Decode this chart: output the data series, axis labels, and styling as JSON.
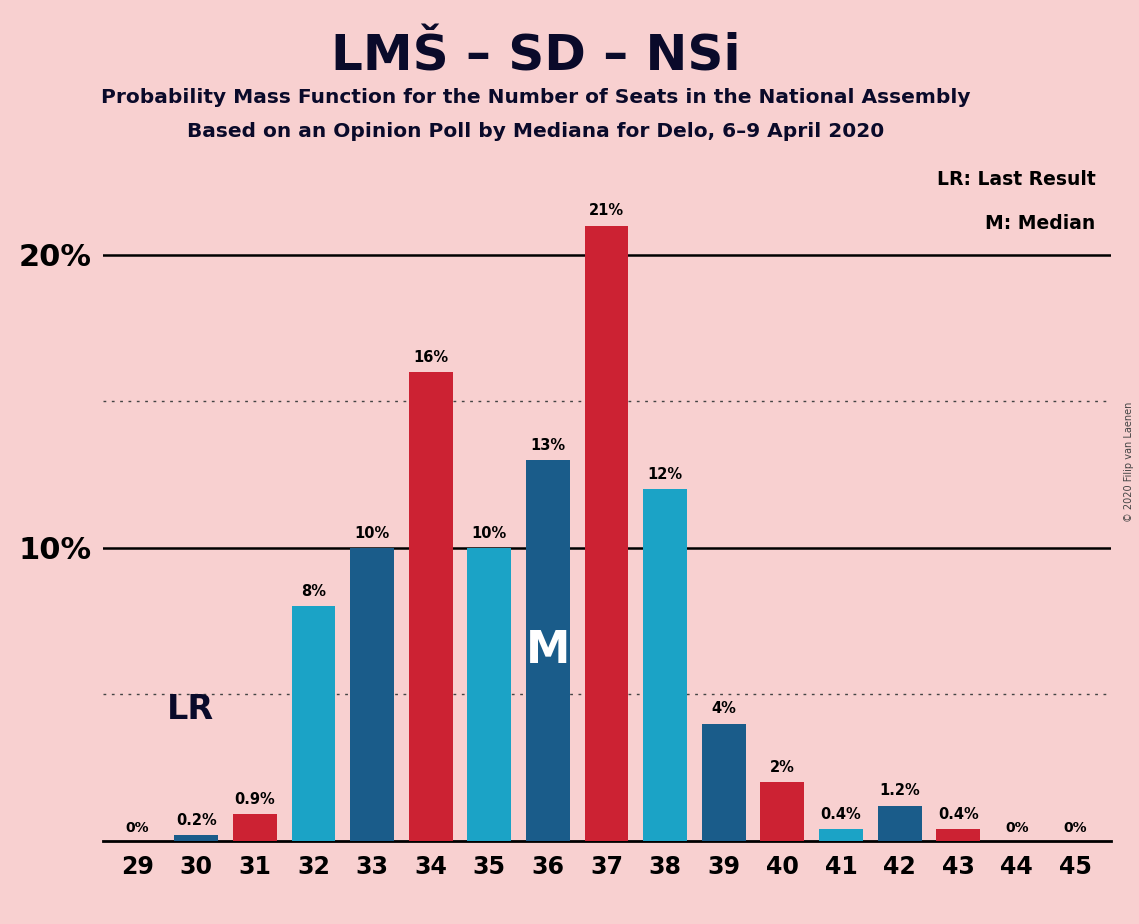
{
  "title": "LMŠ – SD – NSi",
  "subtitle1": "Probability Mass Function for the Number of Seats in the National Assembly",
  "subtitle2": "Based on an Opinion Poll by Mediana for Delo, 6–9 April 2020",
  "copyright": "© 2020 Filip van Laenen",
  "legend_lr": "LR: Last Result",
  "legend_m": "M: Median",
  "seats": [
    29,
    30,
    31,
    32,
    33,
    34,
    35,
    36,
    37,
    38,
    39,
    40,
    41,
    42,
    43,
    44,
    45
  ],
  "seat_values": [
    0.0,
    0.2,
    0.9,
    8.0,
    10.0,
    16.0,
    10.0,
    13.0,
    21.0,
    12.0,
    4.0,
    2.0,
    0.4,
    1.2,
    0.4,
    0.0,
    0.0
  ],
  "seat_colors": [
    "#1BA3C6",
    "#1A5C8A",
    "#CC2233",
    "#1BA3C6",
    "#1A5C8A",
    "#CC2233",
    "#1BA3C6",
    "#1A5C8A",
    "#CC2233",
    "#1BA3C6",
    "#1A5C8A",
    "#CC2233",
    "#1BA3C6",
    "#1A5C8A",
    "#CC2233",
    "#1BA3C6",
    "#1A5C8A"
  ],
  "bar_labels": [
    "0%",
    "0.2%",
    "0.9%",
    "8%",
    "10%",
    "16%",
    "10%",
    "13%",
    "21%",
    "12%",
    "4%",
    "2%",
    "0.4%",
    "1.2%",
    "0.4%",
    "0%",
    "0%"
  ],
  "background_color": "#F8D0D0",
  "lr_seat_idx": 1,
  "median_seat_idx": 7,
  "solid_lines": [
    10,
    20
  ],
  "dotted_lines": [
    5,
    15
  ],
  "ylim": [
    0,
    23.5
  ],
  "bar_width": 0.75,
  "title_color": "#0a0a2a",
  "label_color": "#0a0a2a",
  "lr_color": "#0a0a2a"
}
